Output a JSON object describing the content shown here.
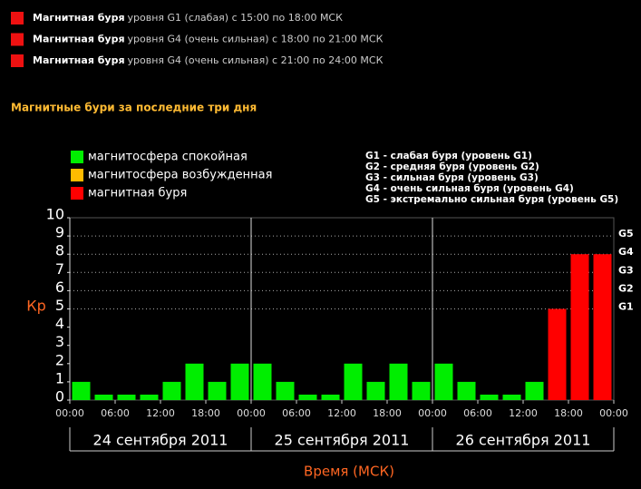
{
  "alerts": [
    {
      "title": "Магнитная буря",
      "text": "уровня  G1 (слабая) с 15:00 по 18:00 МСК"
    },
    {
      "title": "Магнитная буря",
      "text": "уровня  G4 (очень сильная) с 18:00 по 21:00 МСК"
    },
    {
      "title": "Магнитная буря",
      "text": "уровня  G4 (очень сильная) с 21:00 по 24:00 МСК"
    }
  ],
  "section_title": "Магнитные бури за последние три дня",
  "chart_data": {
    "type": "bar",
    "legend": [
      {
        "label": "магнитосфера спокойная",
        "color": "#00ee00"
      },
      {
        "label": "магнитосфера возбужденная",
        "color": "#ffbb00"
      },
      {
        "label": "магнитная буря",
        "color": "#ff0000"
      }
    ],
    "g_legend": [
      "G1 - слабая буря (уровень G1)",
      "G2 - средняя буря (уровень G2)",
      "G3 - сильная буря (уровень G3)",
      "G4 - очень сильная буря (уровень G4)",
      "G5 - экстремально сильная буря (уровень G5)"
    ],
    "y_label": "Кр",
    "x_label": "Время (МСК)",
    "x": [
      0,
      3,
      6,
      9,
      12,
      15,
      18,
      21,
      24,
      27,
      30,
      33,
      36,
      39,
      42,
      45,
      48,
      51,
      54,
      57,
      60,
      63,
      66,
      69
    ],
    "values": [
      1,
      0.3,
      0.3,
      0.3,
      1,
      2,
      1,
      2,
      2,
      1,
      0.3,
      0.3,
      2,
      1,
      2,
      1,
      2,
      1,
      0.3,
      0.3,
      1,
      5,
      8,
      8
    ],
    "colors": [
      "#00ee00",
      "#00ee00",
      "#00ee00",
      "#00ee00",
      "#00ee00",
      "#00ee00",
      "#00ee00",
      "#00ee00",
      "#00ee00",
      "#00ee00",
      "#00ee00",
      "#00ee00",
      "#00ee00",
      "#00ee00",
      "#00ee00",
      "#00ee00",
      "#00ee00",
      "#00ee00",
      "#00ee00",
      "#00ee00",
      "#00ee00",
      "#ff0000",
      "#ff0000",
      "#ff0000"
    ],
    "xlim": [
      0,
      72
    ],
    "xticks": [
      {
        "value": 0,
        "label": "00:00"
      },
      {
        "value": 6,
        "label": "06:00"
      },
      {
        "value": 12,
        "label": "12:00"
      },
      {
        "value": 18,
        "label": "18:00"
      },
      {
        "value": 24,
        "label": "00:00"
      },
      {
        "value": 30,
        "label": "06:00"
      },
      {
        "value": 36,
        "label": "12:00"
      },
      {
        "value": 42,
        "label": "18:00"
      },
      {
        "value": 48,
        "label": "00:00"
      },
      {
        "value": 54,
        "label": "06:00"
      },
      {
        "value": 60,
        "label": "12:00"
      },
      {
        "value": 66,
        "label": "18:00"
      },
      {
        "value": 72,
        "label": "00:00"
      }
    ],
    "days": [
      {
        "label": "24 сентября 2011",
        "xlim": [
          0,
          24
        ]
      },
      {
        "label": "25 сентября 2011",
        "xlim": [
          24,
          48
        ]
      },
      {
        "label": "26 сентября 2011",
        "xlim": [
          48,
          72
        ]
      }
    ],
    "ylim": [
      0,
      10
    ],
    "yticks": [
      0,
      1,
      2,
      3,
      4,
      5,
      6,
      7,
      8,
      9,
      10
    ],
    "y2lim": [
      0,
      10
    ],
    "y2ticks": [
      {
        "value": 5,
        "label": "G1"
      },
      {
        "value": 6,
        "label": "G2"
      },
      {
        "value": 7,
        "label": "G3"
      },
      {
        "value": 8,
        "label": "G4"
      },
      {
        "value": 9,
        "label": "G5"
      }
    ]
  }
}
